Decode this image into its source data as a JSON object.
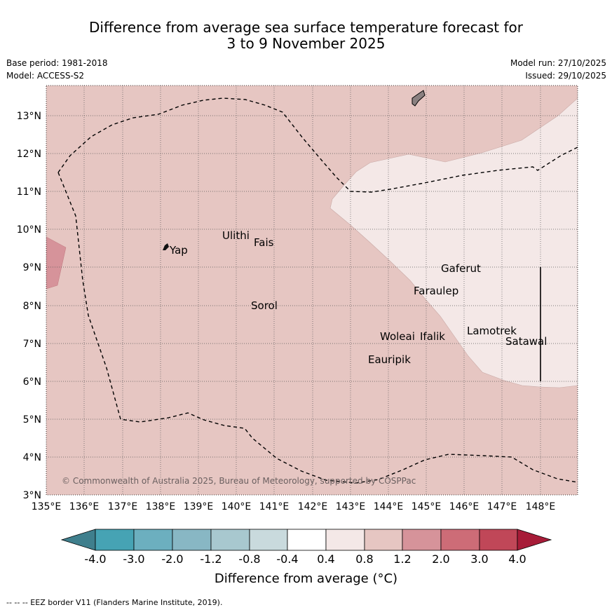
{
  "title": {
    "line1": "Difference from average sea surface temperature forecast for",
    "line2": "3 to 9 November 2025"
  },
  "meta": {
    "base_period": "Base period: 1981-2018",
    "model": "Model: ACCESS-S2",
    "model_run": "Model run: 27/10/2025",
    "issued": "Issued: 29/10/2025"
  },
  "map": {
    "lon_ticks": [
      "135°E",
      "136°E",
      "137°E",
      "138°E",
      "139°E",
      "140°E",
      "141°E",
      "142°E",
      "143°E",
      "144°E",
      "145°E",
      "146°E",
      "147°E",
      "148°E"
    ],
    "lat_ticks": [
      "3°N",
      "4°N",
      "5°N",
      "6°N",
      "7°N",
      "8°N",
      "9°N",
      "10°N",
      "11°N",
      "12°N",
      "13°N"
    ],
    "places": [
      {
        "name": "Yap"
      },
      {
        "name": "Ulithi"
      },
      {
        "name": "Fais"
      },
      {
        "name": "Gaferut"
      },
      {
        "name": "Faraulep"
      },
      {
        "name": "Sorol"
      },
      {
        "name": "Lamotrek"
      },
      {
        "name": "Woleai"
      },
      {
        "name": "Ifalik"
      },
      {
        "name": "Satawal"
      },
      {
        "name": "Eauripik"
      }
    ],
    "copyright": "© Commonwealth of Australia 2025, Bureau of Meteorology, supported by COSPPac",
    "colors": {
      "anomaly_0_8_to_1_2": "#e6c6c2",
      "anomaly_0_4_to_0_8": "#f4e8e7",
      "anomaly_1_2_to_2_0": "#d6939a"
    }
  },
  "colorbar": {
    "labels": [
      "-4.0",
      "-3.0",
      "-2.0",
      "-1.2",
      "-0.8",
      "-0.4",
      "0.4",
      "0.8",
      "1.2",
      "2.0",
      "3.0",
      "4.0"
    ],
    "colors": [
      "#3f7f8d",
      "#46a3b4",
      "#6cafbf",
      "#88b7c4",
      "#a8c8cf",
      "#c9dadd",
      "#ffffff",
      "#f4e8e7",
      "#e6c6c2",
      "#d6939a",
      "#cd6c77",
      "#c04758",
      "#a71c38"
    ],
    "title": "Difference from average (°C)"
  },
  "footnote": "--  --  -- EEZ border V11 (Flanders Marine Institute, 2019)."
}
